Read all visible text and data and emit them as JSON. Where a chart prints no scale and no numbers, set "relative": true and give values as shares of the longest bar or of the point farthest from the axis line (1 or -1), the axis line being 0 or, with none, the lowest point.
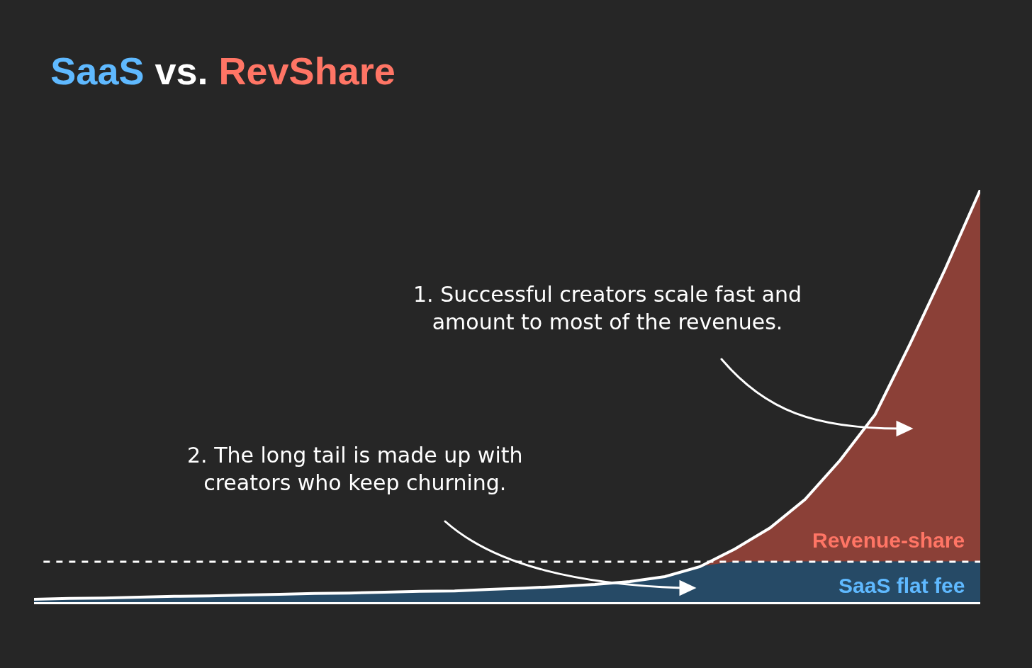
{
  "chart_data": {
    "type": "area",
    "title": "SaaS vs. RevShare",
    "relative": true,
    "stacked": true,
    "legend": false,
    "categories": [
      null,
      null,
      null,
      null,
      null,
      null,
      null,
      null,
      null,
      null,
      null,
      null,
      null,
      null,
      null,
      null,
      null,
      null,
      null,
      null,
      null,
      null,
      null,
      null,
      null,
      null,
      null,
      null
    ],
    "series": [
      {
        "name": "SaaS flat fee",
        "color": "#264a66",
        "values": [
          0.007,
          0.009,
          0.01,
          0.012,
          0.014,
          0.015,
          0.017,
          0.019,
          0.021,
          0.022,
          0.024,
          0.026,
          0.027,
          0.031,
          0.034,
          0.038,
          0.043,
          0.05,
          0.062,
          0.086,
          0.098,
          0.098,
          0.098,
          0.098,
          0.098,
          0.098,
          0.098,
          0.098
        ]
      },
      {
        "name": "Revenue-share",
        "color": "#8b4037",
        "values": [
          0,
          0,
          0,
          0,
          0,
          0,
          0,
          0,
          0,
          0,
          0,
          0,
          0,
          0,
          0,
          0,
          0,
          0,
          0,
          0,
          0.031,
          0.082,
          0.151,
          0.246,
          0.357,
          0.529,
          0.71,
          0.902
        ]
      }
    ],
    "ref_lines": [
      {
        "axis": "y",
        "value": 0.098,
        "color": "#ffffff",
        "line_style": "dashed"
      }
    ],
    "annotations": [
      "1. Successful creators scale fast and\namount to most of the revenues.",
      "2. The long tail is made up with\ncreators who keep churning."
    ]
  }
}
